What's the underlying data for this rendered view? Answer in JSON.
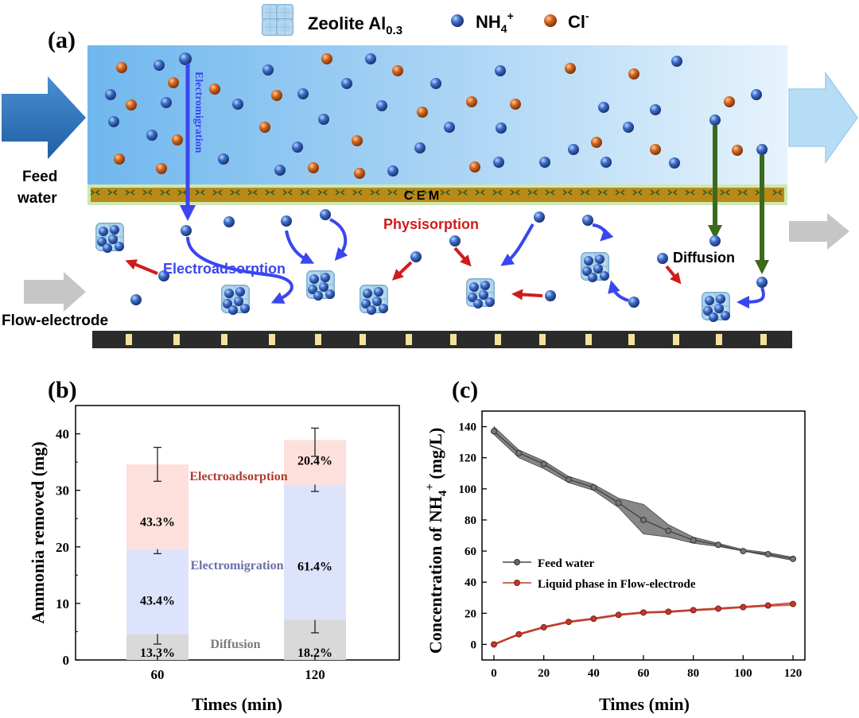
{
  "colors": {
    "nh4": "#2f5fb8",
    "cl": "#d0661f",
    "blue_arrow": "#3a46ee",
    "red_arrow": "#d01b1b",
    "green_arrow": "#3b6a1e",
    "cem": "#b98a18",
    "electrode": "#2b2b2b",
    "electrode_tab": "#f4e29a",
    "diffusion_fill": "#d9d9d9",
    "electromigration_fill": "#dde3fb",
    "electroadsorption_fill": "#fde0dc",
    "feed_line": "#444444",
    "feed_band": "#7a7a7a",
    "liquid_line": "#c0392b",
    "liquid_band": "#e8a89c"
  },
  "panel_a": {
    "panel_label": "(a)",
    "legend": {
      "zeolite_label": "Zeolite Al",
      "zeolite_sub": "0.3",
      "nh4_label": "NH",
      "nh4_sub": "4",
      "nh4_sup": "+",
      "cl_label": "Cl",
      "cl_sup": "-"
    },
    "feed_water_line1": "Feed",
    "feed_water_line2": "water",
    "cem_label": "C E M",
    "electromigration_label": "Electromigration",
    "electroadsorption_label": "Electroadsorption",
    "physisorption_label": "Physisorption",
    "diffusion_label": "Diffusion",
    "flow_electrode_label": "Flow-electrode"
  },
  "panel_b": {
    "panel_label": "(b)",
    "ylabel": "Ammonia removed (mg)",
    "xlabel": "Times (min)",
    "series_labels": {
      "diffusion": "Diffusion",
      "electromigration": "Electromigration",
      "electroadsorption": "Electroadsorption"
    }
  },
  "panel_c": {
    "panel_label": "(c)",
    "ylabel_main": "Concentration of NH",
    "ylabel_sub": "4",
    "ylabel_sup": "+",
    "ylabel_unit": " (mg/L)",
    "xlabel": "Times (min)",
    "legend_feed": "Feed water",
    "legend_liquid": "Liquid phase in Flow-electrode"
  },
  "chart_data": [
    {
      "type": "bar",
      "title": "(b)",
      "stacked": true,
      "xlabel": "Times (min)",
      "ylabel": "Ammonia removed (mg)",
      "categories": [
        "60",
        "120"
      ],
      "ylim": [
        0,
        45
      ],
      "yticks": [
        0,
        10,
        20,
        30,
        40
      ],
      "series": [
        {
          "name": "Diffusion",
          "values": [
            4.6,
            7.1
          ],
          "percent_labels": [
            "13.3%",
            "18.2%"
          ],
          "error_top": [
            6.4,
            9.4
          ],
          "error_bottom": [
            2.8,
            4.8
          ]
        },
        {
          "name": "Electromigration",
          "values": [
            15.0,
            23.9
          ],
          "percent_labels": [
            "43.4%",
            "61.4%"
          ],
          "error_top": [
            20.6,
            32.4
          ],
          "error_bottom": [
            18.8,
            29.8
          ]
        },
        {
          "name": "Electroadsorption",
          "values": [
            15.0,
            7.9
          ],
          "percent_labels": [
            "43.3%",
            "20.4%"
          ],
          "error_top": [
            37.6,
            41.0
          ],
          "error_bottom": [
            31.6,
            36.0
          ]
        }
      ]
    },
    {
      "type": "line",
      "title": "(c)",
      "xlabel": "Times (min)",
      "ylabel": "Concentration of NH4+ (mg/L)",
      "xlim": [
        0,
        120
      ],
      "ylim": [
        -10,
        150
      ],
      "xticks": [
        0,
        20,
        40,
        60,
        80,
        100,
        120
      ],
      "yticks": [
        0,
        20,
        40,
        60,
        80,
        100,
        120,
        140
      ],
      "x": [
        0,
        10,
        20,
        30,
        40,
        50,
        60,
        70,
        80,
        90,
        100,
        110,
        120
      ],
      "series": [
        {
          "name": "Feed water",
          "values": [
            137,
            123,
            116,
            106,
            101,
            91,
            80,
            73,
            67,
            64,
            60,
            58,
            55
          ],
          "band_upper": [
            140,
            125,
            118,
            108,
            103,
            94,
            90,
            77,
            69,
            65,
            61,
            59,
            56
          ],
          "band_lower": [
            135,
            120,
            113,
            104,
            99,
            88,
            71,
            69,
            65,
            63,
            60,
            57,
            54
          ]
        },
        {
          "name": "Liquid phase in Flow-electrode",
          "values": [
            0,
            6.5,
            11,
            14.5,
            16.5,
            19,
            20.5,
            21,
            22,
            23,
            24,
            25,
            26
          ],
          "band_upper": [
            0.5,
            7,
            11.5,
            15,
            17,
            19.5,
            21,
            21.5,
            22.5,
            23.5,
            24.5,
            25.5,
            27
          ],
          "band_lower": [
            -0.5,
            6,
            10.5,
            14,
            16,
            18.5,
            20,
            20.5,
            21.5,
            22.5,
            23.5,
            24.5,
            25
          ]
        }
      ]
    }
  ]
}
